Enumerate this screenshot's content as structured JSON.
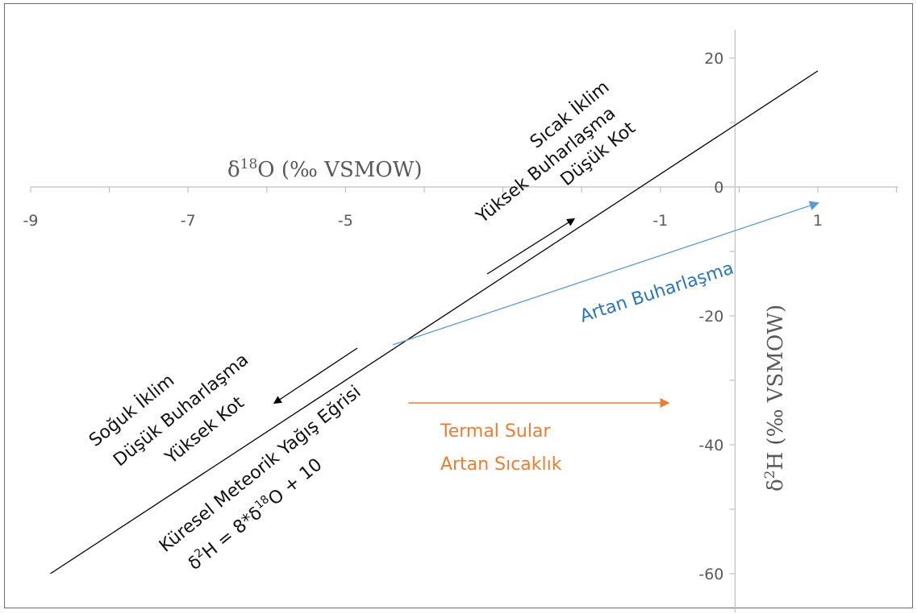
{
  "chart_data": {
    "type": "line",
    "x_axis": {
      "label_prefix": "δ",
      "label_sup": "18",
      "label_rest": "O (‰ VSMOW)",
      "range": [
        -9,
        2
      ],
      "tick_labels": [
        {
          "value": -9,
          "text": "-9"
        },
        {
          "value": -7,
          "text": "-7"
        },
        {
          "value": -5,
          "text": "-5"
        },
        {
          "value": -1,
          "text": "-1"
        },
        {
          "value": 1,
          "text": "1"
        }
      ],
      "minor_ticks": [
        -9,
        -8,
        -7,
        -6,
        -5,
        -4,
        -3,
        -2,
        -1,
        0,
        1,
        2
      ]
    },
    "y_axis": {
      "label_prefix": "δ",
      "label_sup": "2",
      "label_rest": "H (‰ VSMOW)",
      "range": [
        -65,
        25
      ],
      "tick_labels": [
        {
          "value": 20,
          "text": "20"
        },
        {
          "value": 0,
          "text": "0"
        },
        {
          "value": -20,
          "text": "-20"
        },
        {
          "value": -40,
          "text": "-40"
        },
        {
          "value": -60,
          "text": "-60"
        }
      ],
      "minor_ticks": [
        20,
        10,
        0,
        -10,
        -20,
        -30,
        -40,
        -50,
        -60
      ]
    },
    "grid": false,
    "series": [
      {
        "name": "Küresel Meteorik Yağış Eğrisi",
        "color": "#000000",
        "x": [
          -8.75,
          1.0
        ],
        "y": [
          -60.0,
          18.0
        ]
      },
      {
        "name": "Artan Buharlaşma",
        "color": "#5b9bd5",
        "x": [
          -4.4,
          1.0
        ],
        "y": [
          -24.5,
          -2.5
        ]
      }
    ],
    "arrows": [
      {
        "name": "sicak-arrow",
        "color": "#000000",
        "from": [
          -3.2,
          -13.5
        ],
        "to": [
          -2.1,
          -5.0
        ]
      },
      {
        "name": "soguk-arrow",
        "color": "#000000",
        "from": [
          -4.85,
          -25.0
        ],
        "to": [
          -5.9,
          -33.5
        ]
      },
      {
        "name": "termal-arrow",
        "color": "#ed7d31",
        "from": [
          -4.2,
          -33.5
        ],
        "to": [
          -0.9,
          -33.5
        ]
      }
    ],
    "annotations": {
      "sicak": {
        "line1": "Sıcak İklim",
        "line2": "Yüksek Buharlaşma",
        "line3": "Düşük Kot"
      },
      "soguk": {
        "line1": "Soğuk İklim",
        "line2": "Düşük Buharlaşma",
        "line3": "Yüksek Kot"
      },
      "gmwl": {
        "line1": "Küresel Meteorik Yağış Eğrisi",
        "eq_d": "δ",
        "eq_sup2": "2",
        "eq_mid": "H = 8*δ",
        "eq_sup18": "18",
        "eq_end": "O + 10"
      },
      "artan": {
        "text": "Artan Buharlaşma"
      },
      "termal": {
        "line1": "Termal Sular",
        "line2": "Artan Sıcaklık"
      }
    }
  }
}
